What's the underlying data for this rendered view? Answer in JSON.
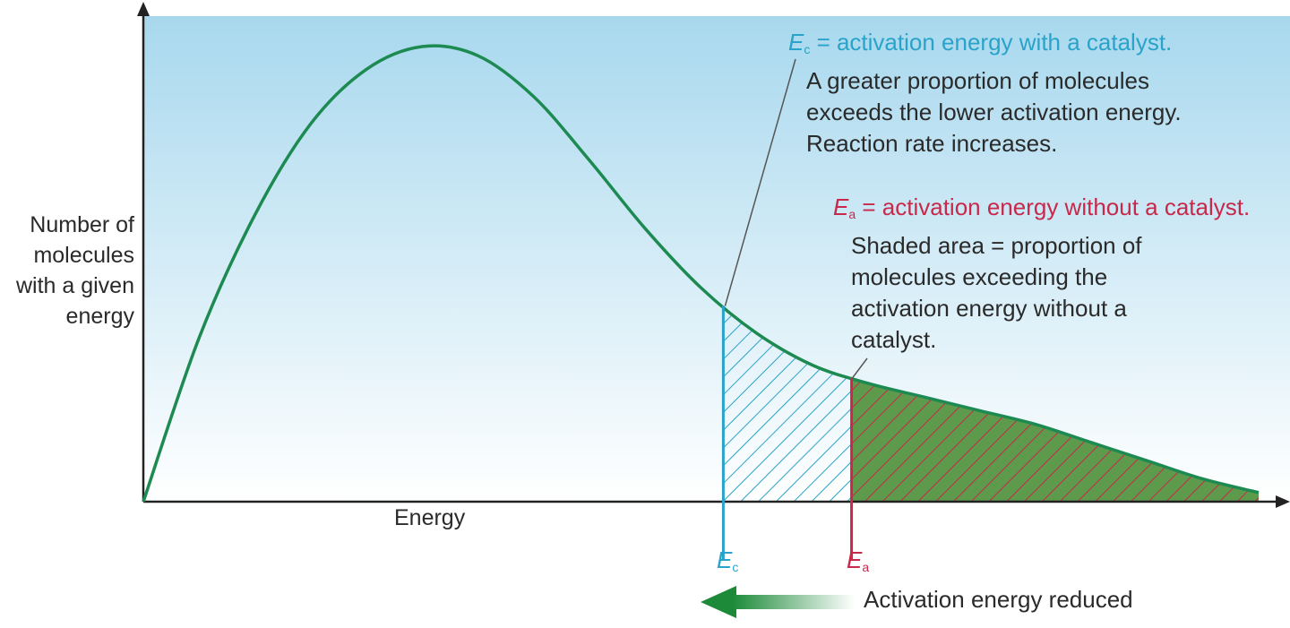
{
  "chart_data": {
    "type": "area",
    "title": "",
    "xlabel": "Energy",
    "ylabel": "Number of\nmolecules\nwith a given\nenergy",
    "curve": "Maxwell-Boltzmann energy distribution",
    "x": [
      0,
      0.5,
      1,
      1.5,
      2,
      2.5,
      3,
      3.5,
      4,
      4.5,
      5,
      5.5,
      6,
      6.5,
      7,
      7.5,
      8,
      8.5,
      9,
      9.5,
      10
    ],
    "y": [
      0,
      0.36,
      0.63,
      0.83,
      0.95,
      1.0,
      0.98,
      0.89,
      0.75,
      0.6,
      0.47,
      0.37,
      0.3,
      0.26,
      0.23,
      0.2,
      0.17,
      0.13,
      0.09,
      0.05,
      0.02
    ],
    "markers": [
      {
        "label": "E",
        "sub": "c",
        "x": 5.2,
        "color": "#29a3c9"
      },
      {
        "label": "E",
        "sub": "a",
        "x": 6.35,
        "color": "#c8284a"
      }
    ],
    "annotations": {
      "ec": {
        "symbol": "E",
        "sub": "c",
        "equation": " = activation energy with a catalyst.",
        "text": "A greater proportion of molecules\nexceeds the lower activation energy.\nReaction rate increases."
      },
      "ea": {
        "symbol": "E",
        "sub": "a",
        "equation": " = activation energy without a catalyst.",
        "text": "Shaded area = proportion of\nmolecules exceeding the\nactivation energy without a\ncatalyst."
      }
    },
    "arrow_label": "Activation energy reduced",
    "colors": {
      "curve": "#1d8a52",
      "catalyst": "#29a3c9",
      "no_catalyst": "#c8284a",
      "shaded_fill": "#5e9a4c",
      "background_top": "#a8d8ee"
    }
  }
}
